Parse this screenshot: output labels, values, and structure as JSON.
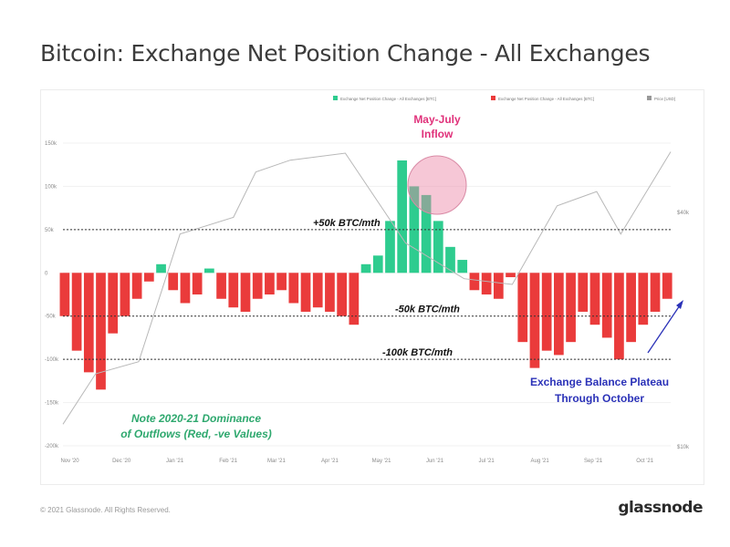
{
  "header": {
    "title": "Bitcoin: Exchange Net Position Change - All Exchanges"
  },
  "footer": {
    "copyright": "© 2021 Glassnode. All Rights Reserved.",
    "brand": "glassnode"
  },
  "legend": {
    "placement": "top-right",
    "items": [
      {
        "label": "Exchange Net Position Change - All Exchanges [BTC]",
        "color": "#2ecc8f"
      },
      {
        "label": "Exchange Net Position Change - All Exchanges [BTC]",
        "color": "#ea3b3b"
      },
      {
        "label": "Price [USD]",
        "color": "#999999"
      }
    ]
  },
  "chart_data": {
    "type": "bar",
    "title": "Bitcoin: Exchange Net Position Change - All Exchanges",
    "ylim_left": [
      -200000,
      150000
    ],
    "yticks_left": [
      {
        "value": 150000,
        "label": "150k"
      },
      {
        "value": 100000,
        "label": "100k"
      },
      {
        "value": 50000,
        "label": "50k"
      },
      {
        "value": 0,
        "label": "0"
      },
      {
        "value": -50000,
        "label": "-50k"
      },
      {
        "value": -100000,
        "label": "-100k"
      },
      {
        "value": -150000,
        "label": "-150k"
      },
      {
        "value": -200000,
        "label": "-200k"
      }
    ],
    "yticks_right": [
      {
        "label": "$40k"
      },
      {
        "label": "$10k"
      }
    ],
    "x_ticks": [
      "Nov '20",
      "Dec '20",
      "Jan '21",
      "Feb '21",
      "Mar '21",
      "Apr '21",
      "May '21",
      "Jun '21",
      "Jul '21",
      "Aug '21",
      "Sep '21",
      "Oct '21"
    ],
    "x_start": "2020-11-01",
    "x_end": "2021-10-20",
    "bars": [
      [
        "2020-11-02",
        -50000
      ],
      [
        "2020-11-09",
        -90000
      ],
      [
        "2020-11-16",
        -115000
      ],
      [
        "2020-11-23",
        -135000
      ],
      [
        "2020-11-30",
        -70000
      ],
      [
        "2020-12-07",
        -50000
      ],
      [
        "2020-12-14",
        -30000
      ],
      [
        "2020-12-21",
        -10000
      ],
      [
        "2020-12-28",
        10000
      ],
      [
        "2021-01-04",
        -20000
      ],
      [
        "2021-01-11",
        -35000
      ],
      [
        "2021-01-18",
        -25000
      ],
      [
        "2021-01-25",
        5000
      ],
      [
        "2021-02-01",
        -30000
      ],
      [
        "2021-02-08",
        -40000
      ],
      [
        "2021-02-15",
        -45000
      ],
      [
        "2021-02-22",
        -30000
      ],
      [
        "2021-03-01",
        -25000
      ],
      [
        "2021-03-08",
        -20000
      ],
      [
        "2021-03-15",
        -35000
      ],
      [
        "2021-03-22",
        -45000
      ],
      [
        "2021-03-29",
        -40000
      ],
      [
        "2021-04-05",
        -45000
      ],
      [
        "2021-04-12",
        -50000
      ],
      [
        "2021-04-19",
        -60000
      ],
      [
        "2021-04-26",
        10000
      ],
      [
        "2021-05-03",
        20000
      ],
      [
        "2021-05-10",
        60000
      ],
      [
        "2021-05-17",
        130000
      ],
      [
        "2021-05-24",
        100000
      ],
      [
        "2021-05-31",
        90000
      ],
      [
        "2021-06-07",
        60000
      ],
      [
        "2021-06-14",
        30000
      ],
      [
        "2021-06-21",
        15000
      ],
      [
        "2021-06-28",
        -20000
      ],
      [
        "2021-07-05",
        -25000
      ],
      [
        "2021-07-12",
        -30000
      ],
      [
        "2021-07-19",
        -5000
      ],
      [
        "2021-07-26",
        -80000
      ],
      [
        "2021-08-02",
        -110000
      ],
      [
        "2021-08-09",
        -90000
      ],
      [
        "2021-08-16",
        -95000
      ],
      [
        "2021-08-23",
        -80000
      ],
      [
        "2021-08-30",
        -45000
      ],
      [
        "2021-09-06",
        -60000
      ],
      [
        "2021-09-13",
        -75000
      ],
      [
        "2021-09-20",
        -100000
      ],
      [
        "2021-09-27",
        -80000
      ],
      [
        "2021-10-04",
        -60000
      ],
      [
        "2021-10-11",
        -45000
      ],
      [
        "2021-10-18",
        -30000
      ]
    ],
    "reference_lines": [
      {
        "value": 50000,
        "label": "+50k BTC/mth"
      },
      {
        "value": -50000,
        "label": "-50k BTC/mth"
      },
      {
        "value": -100000,
        "label": "-100k BTC/mth"
      }
    ],
    "price_series": [
      [
        "2020-11-01",
        13500
      ],
      [
        "2020-11-20",
        18000
      ],
      [
        "2020-12-15",
        19300
      ],
      [
        "2021-01-08",
        40000
      ],
      [
        "2021-02-08",
        44000
      ],
      [
        "2021-02-21",
        57000
      ],
      [
        "2021-03-13",
        61000
      ],
      [
        "2021-04-14",
        63500
      ],
      [
        "2021-05-19",
        38000
      ],
      [
        "2021-06-22",
        31000
      ],
      [
        "2021-07-20",
        30000
      ],
      [
        "2021-08-15",
        47000
      ],
      [
        "2021-09-07",
        51000
      ],
      [
        "2021-09-21",
        40000
      ],
      [
        "2021-10-20",
        64000
      ]
    ],
    "annotations": [
      {
        "text": "May-July",
        "color": "#e0317a"
      },
      {
        "text": "Inflow",
        "color": "#e0317a"
      },
      {
        "text": "Note 2020-21 Dominance",
        "color": "#2ea86e"
      },
      {
        "text": "of Outflows (Red, -ve Values)",
        "color": "#2ea86e"
      },
      {
        "text": "Exchange Balance Plateau",
        "color": "#2b32b8"
      },
      {
        "text": "Through October",
        "color": "#2b32b8"
      }
    ]
  }
}
